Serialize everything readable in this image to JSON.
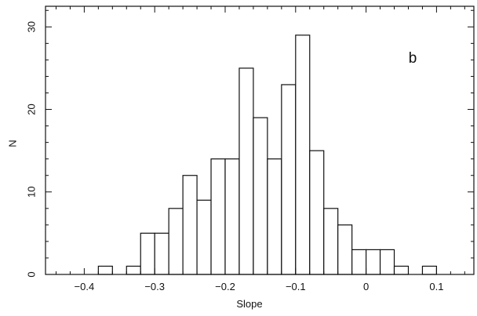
{
  "chart_data": {
    "type": "bar",
    "subtype": "histogram",
    "panel_label": "b",
    "xlabel": "Slope",
    "ylabel": "N",
    "xlim": [
      -0.455,
      0.153
    ],
    "ylim": [
      0,
      32.5
    ],
    "bin_width": 0.02,
    "x_ticks": [
      -0.4,
      -0.3,
      -0.2,
      -0.1,
      0,
      0.1
    ],
    "x_tick_labels": [
      "−0.4",
      "−0.3",
      "−0.2",
      "−0.1",
      "0",
      "0.1"
    ],
    "y_ticks": [
      0,
      10,
      20,
      30
    ],
    "y_tick_labels": [
      "0",
      "10",
      "20",
      "30"
    ],
    "bins": [
      {
        "x0": -0.38,
        "x1": -0.36,
        "count": 1
      },
      {
        "x0": -0.34,
        "x1": -0.32,
        "count": 1
      },
      {
        "x0": -0.32,
        "x1": -0.3,
        "count": 5
      },
      {
        "x0": -0.3,
        "x1": -0.28,
        "count": 5
      },
      {
        "x0": -0.28,
        "x1": -0.26,
        "count": 8
      },
      {
        "x0": -0.26,
        "x1": -0.24,
        "count": 12
      },
      {
        "x0": -0.24,
        "x1": -0.22,
        "count": 9
      },
      {
        "x0": -0.22,
        "x1": -0.2,
        "count": 14
      },
      {
        "x0": -0.2,
        "x1": -0.18,
        "count": 14
      },
      {
        "x0": -0.18,
        "x1": -0.16,
        "count": 25
      },
      {
        "x0": -0.16,
        "x1": -0.14,
        "count": 19
      },
      {
        "x0": -0.14,
        "x1": -0.12,
        "count": 14
      },
      {
        "x0": -0.12,
        "x1": -0.1,
        "count": 23
      },
      {
        "x0": -0.1,
        "x1": -0.08,
        "count": 29
      },
      {
        "x0": -0.08,
        "x1": -0.06,
        "count": 15
      },
      {
        "x0": -0.06,
        "x1": -0.04,
        "count": 8
      },
      {
        "x0": -0.04,
        "x1": -0.02,
        "count": 6
      },
      {
        "x0": -0.02,
        "x1": 0.0,
        "count": 3
      },
      {
        "x0": 0.0,
        "x1": 0.02,
        "count": 3
      },
      {
        "x0": 0.02,
        "x1": 0.04,
        "count": 3
      },
      {
        "x0": 0.04,
        "x1": 0.06,
        "count": 1
      },
      {
        "x0": 0.08,
        "x1": 0.1,
        "count": 1
      }
    ],
    "grid": false,
    "bar_fill": "#ffffff",
    "line_color": "#111111"
  }
}
